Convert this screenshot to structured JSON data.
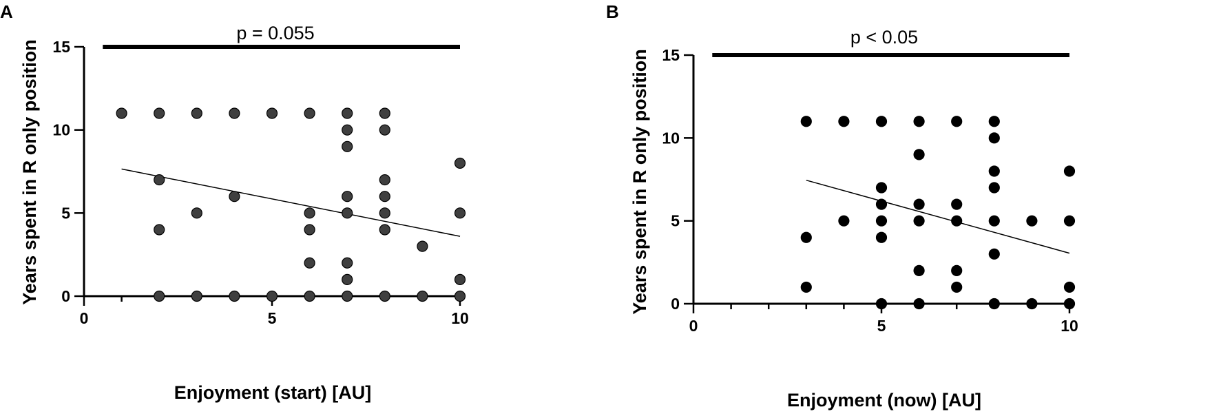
{
  "chart_data": [
    {
      "type": "scatter",
      "panel_label": "A",
      "annotation": "p = 0.055",
      "xlabel": "Enjoyment (start) [AU]",
      "ylabel": "Years spent in R only position",
      "xlim": [
        0,
        10
      ],
      "ylim": [
        0,
        15
      ],
      "xticks": [
        "0",
        "5",
        "10"
      ],
      "yticks": [
        "0",
        "5",
        "10",
        "15"
      ],
      "grid": false,
      "point_color": "#3f3f3f",
      "points": [
        {
          "x": 1,
          "y": 11
        },
        {
          "x": 2,
          "y": 11
        },
        {
          "x": 2,
          "y": 7
        },
        {
          "x": 2,
          "y": 4
        },
        {
          "x": 2,
          "y": 0
        },
        {
          "x": 3,
          "y": 11
        },
        {
          "x": 3,
          "y": 5
        },
        {
          "x": 3,
          "y": 0
        },
        {
          "x": 4,
          "y": 11
        },
        {
          "x": 4,
          "y": 6
        },
        {
          "x": 4,
          "y": 0
        },
        {
          "x": 5,
          "y": 11
        },
        {
          "x": 5,
          "y": 0
        },
        {
          "x": 6,
          "y": 11
        },
        {
          "x": 6,
          "y": 5
        },
        {
          "x": 6,
          "y": 4
        },
        {
          "x": 6,
          "y": 2
        },
        {
          "x": 6,
          "y": 0
        },
        {
          "x": 7,
          "y": 11
        },
        {
          "x": 7,
          "y": 10
        },
        {
          "x": 7,
          "y": 9
        },
        {
          "x": 7,
          "y": 6
        },
        {
          "x": 7,
          "y": 5
        },
        {
          "x": 7,
          "y": 2
        },
        {
          "x": 7,
          "y": 1
        },
        {
          "x": 7,
          "y": 0
        },
        {
          "x": 8,
          "y": 11
        },
        {
          "x": 8,
          "y": 10
        },
        {
          "x": 8,
          "y": 7
        },
        {
          "x": 8,
          "y": 6
        },
        {
          "x": 8,
          "y": 5
        },
        {
          "x": 8,
          "y": 4
        },
        {
          "x": 8,
          "y": 0
        },
        {
          "x": 9,
          "y": 3
        },
        {
          "x": 9,
          "y": 0
        },
        {
          "x": 10,
          "y": 8
        },
        {
          "x": 10,
          "y": 5
        },
        {
          "x": 10,
          "y": 1
        },
        {
          "x": 10,
          "y": 0
        }
      ],
      "regression_line": {
        "x": [
          1,
          10
        ],
        "y": [
          7.65,
          3.6
        ]
      },
      "significance_bar": {
        "x": [
          0.5,
          10
        ],
        "y": 15
      }
    },
    {
      "type": "scatter",
      "panel_label": "B",
      "annotation": "p < 0.05",
      "xlabel": "Enjoyment (now) [AU]",
      "ylabel": "Years spent in R only position",
      "xlim": [
        0,
        10
      ],
      "ylim": [
        0,
        15
      ],
      "xticks": [
        "0",
        "5",
        "10"
      ],
      "yticks": [
        "0",
        "5",
        "10",
        "15"
      ],
      "grid": false,
      "point_color": "#000000",
      "points": [
        {
          "x": 3,
          "y": 11
        },
        {
          "x": 3,
          "y": 4
        },
        {
          "x": 3,
          "y": 1
        },
        {
          "x": 4,
          "y": 11
        },
        {
          "x": 4,
          "y": 5
        },
        {
          "x": 5,
          "y": 11
        },
        {
          "x": 5,
          "y": 7
        },
        {
          "x": 5,
          "y": 6
        },
        {
          "x": 5,
          "y": 5
        },
        {
          "x": 5,
          "y": 4
        },
        {
          "x": 5,
          "y": 0
        },
        {
          "x": 6,
          "y": 11
        },
        {
          "x": 6,
          "y": 9
        },
        {
          "x": 6,
          "y": 6
        },
        {
          "x": 6,
          "y": 5
        },
        {
          "x": 6,
          "y": 2
        },
        {
          "x": 6,
          "y": 0
        },
        {
          "x": 7,
          "y": 11
        },
        {
          "x": 7,
          "y": 6
        },
        {
          "x": 7,
          "y": 5
        },
        {
          "x": 7,
          "y": 2
        },
        {
          "x": 7,
          "y": 1
        },
        {
          "x": 8,
          "y": 11
        },
        {
          "x": 8,
          "y": 10
        },
        {
          "x": 8,
          "y": 8
        },
        {
          "x": 8,
          "y": 7
        },
        {
          "x": 8,
          "y": 5
        },
        {
          "x": 8,
          "y": 3
        },
        {
          "x": 8,
          "y": 0
        },
        {
          "x": 9,
          "y": 5
        },
        {
          "x": 9,
          "y": 0
        },
        {
          "x": 10,
          "y": 8
        },
        {
          "x": 10,
          "y": 5
        },
        {
          "x": 10,
          "y": 1
        },
        {
          "x": 10,
          "y": 0
        }
      ],
      "regression_line": {
        "x": [
          3,
          10
        ],
        "y": [
          7.45,
          3.05
        ]
      },
      "significance_bar": {
        "x": [
          0.5,
          10
        ],
        "y": 15
      }
    }
  ]
}
